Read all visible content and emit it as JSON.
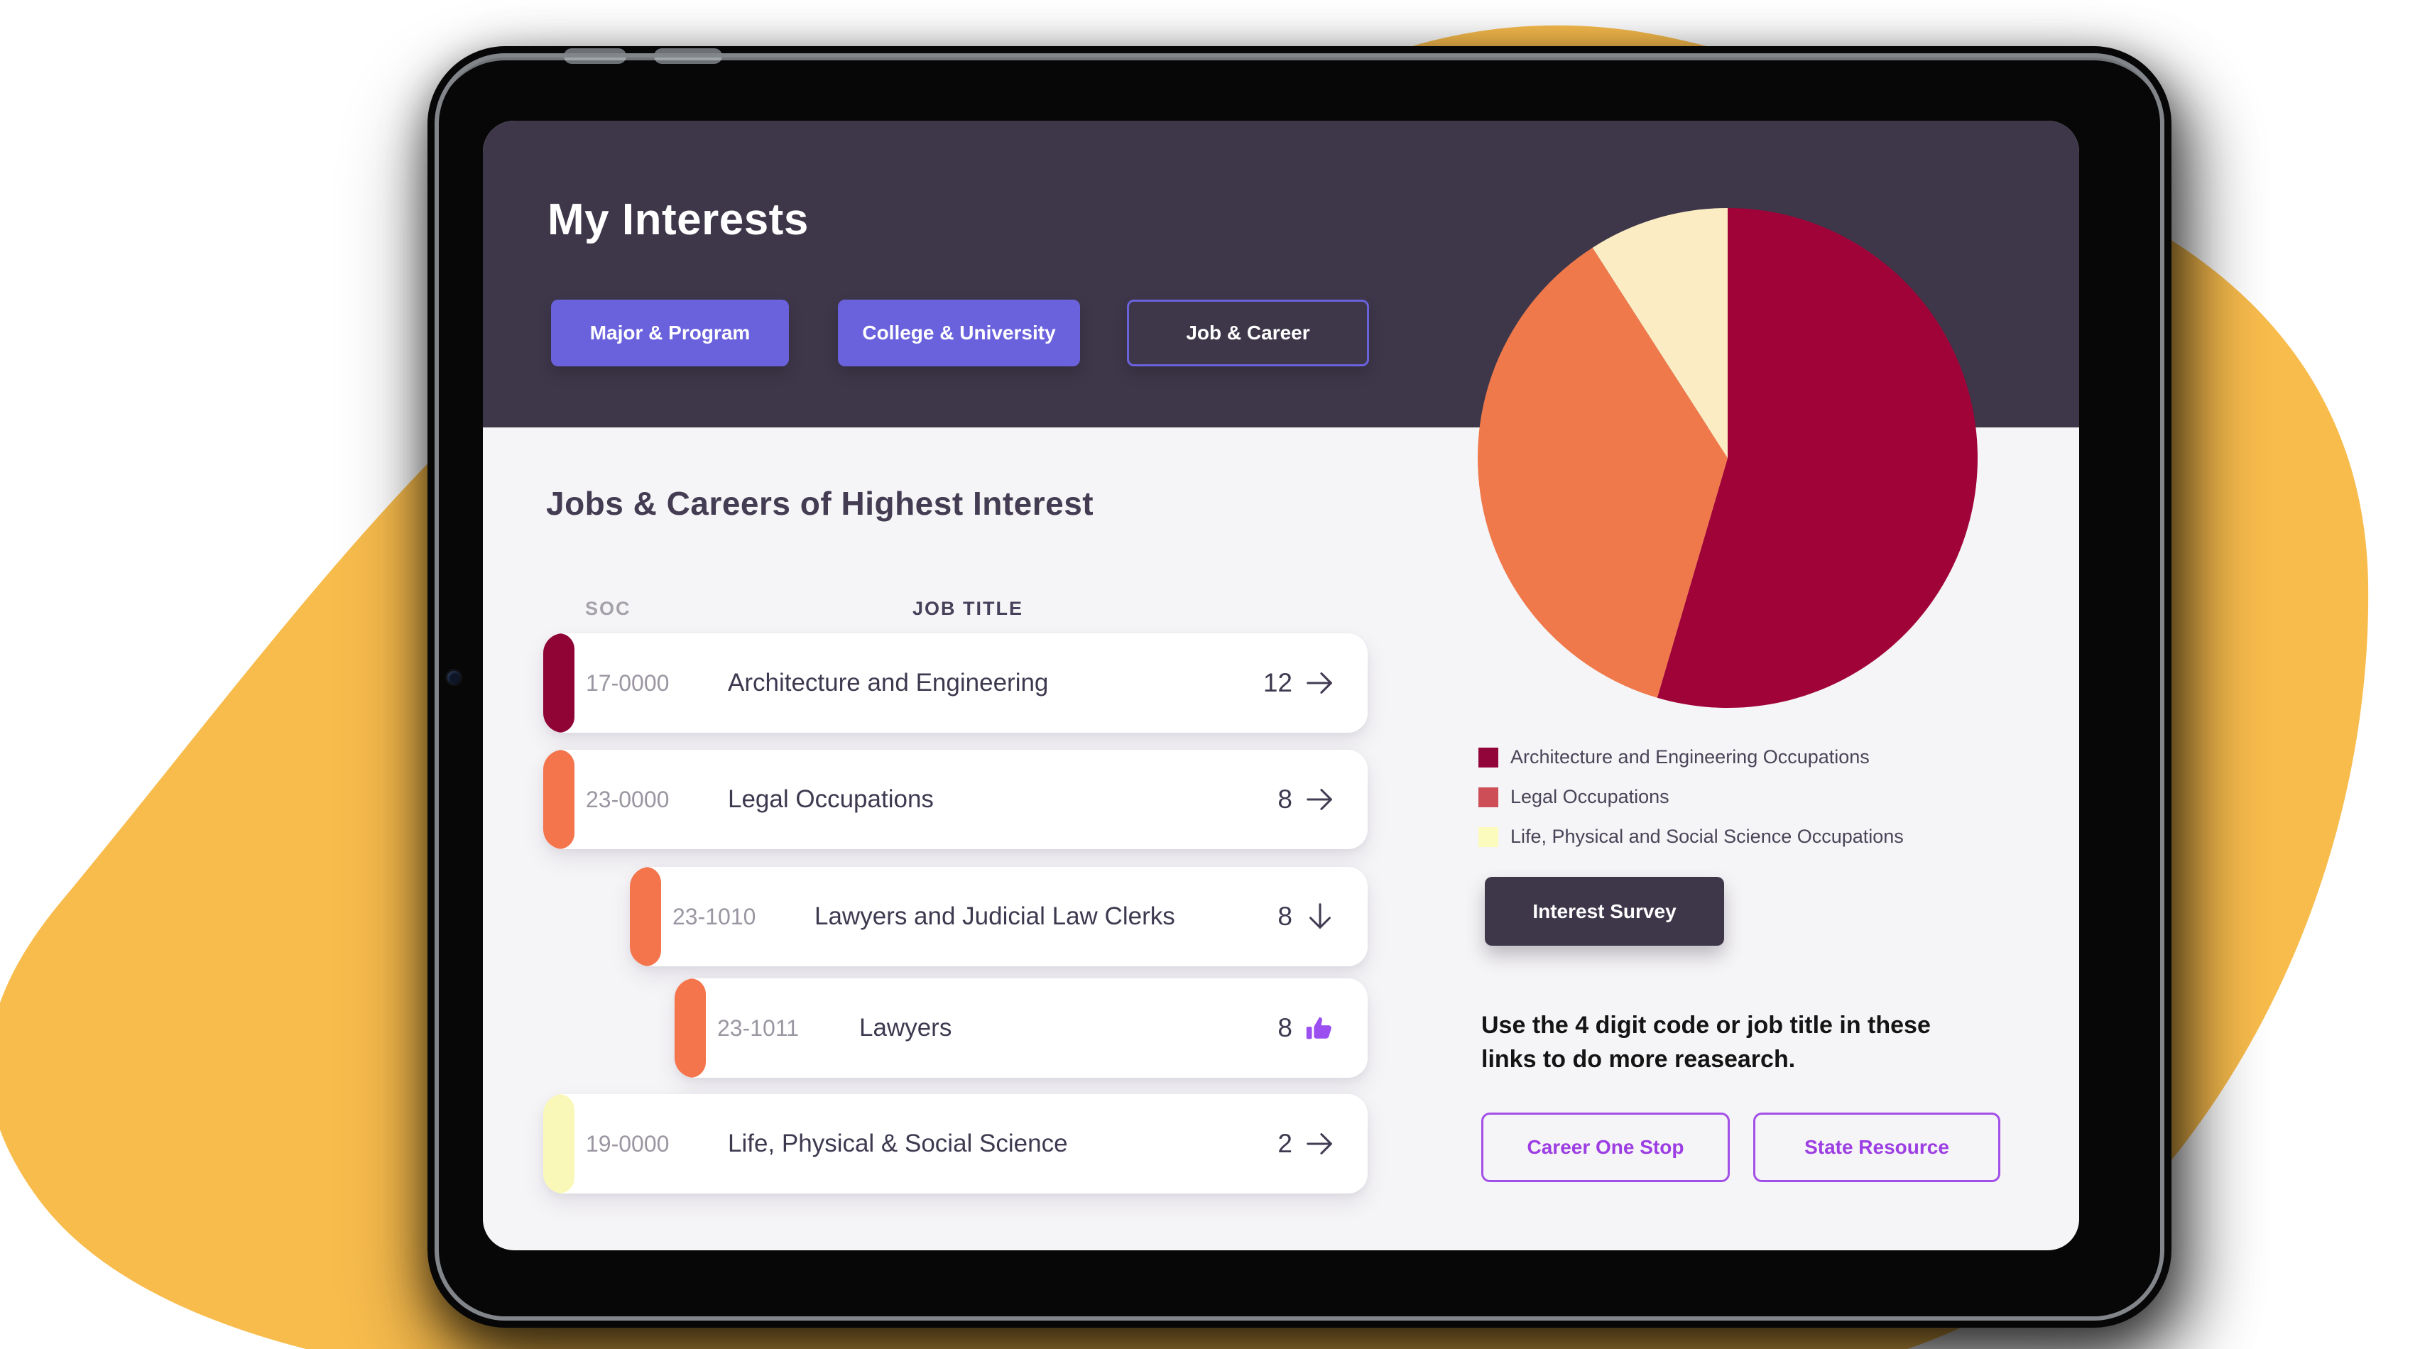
{
  "page": {
    "title": "My Interests",
    "tabs": [
      {
        "label": "Major & Program",
        "style": "filled"
      },
      {
        "label": "College & University",
        "style": "filled"
      },
      {
        "label": "Job & Career",
        "style": "outlined"
      }
    ]
  },
  "jobs_section": {
    "heading": "Jobs & Careers of Highest Interest",
    "columns": {
      "soc": "SOC",
      "job_title": "JOB TITLE"
    },
    "rows": [
      {
        "soc": "17-0000",
        "title": "Architecture and Engineering",
        "count": "12",
        "icon": "arrow-right",
        "accent": "#8F0434",
        "indent": 0
      },
      {
        "soc": "23-0000",
        "title": "Legal Occupations",
        "count": "8",
        "icon": "arrow-right",
        "accent": "#F4744C",
        "indent": 0
      },
      {
        "soc": "23-1010",
        "title": "Lawyers and Judicial Law Clerks",
        "count": "8",
        "icon": "arrow-down",
        "accent": "#F4744C",
        "indent": 1
      },
      {
        "soc": "23-1011",
        "title": "Lawyers",
        "count": "8",
        "icon": "thumbs-up",
        "accent": "#F4744C",
        "indent": 2
      },
      {
        "soc": "19-0000",
        "title": "Life, Physical & Social Science",
        "count": "2",
        "icon": "arrow-right",
        "accent": "#FAF8B8",
        "indent": 0
      }
    ]
  },
  "chart_data": {
    "type": "pie",
    "labels": [
      "Architecture and Engineering Occupations",
      "Legal Occupations",
      "Life, Physical and Social Science Occupations"
    ],
    "values": [
      12,
      8,
      2
    ],
    "slice_colors": [
      "#A00338",
      "#F0794B",
      "#FBECC4"
    ],
    "legend_colors": [
      "#92053A",
      "#CD4E57",
      "#FBFBBE"
    ],
    "start_angle_deg": 0,
    "direction": "clockwise",
    "legend_position": "below-left",
    "title": ""
  },
  "right_panel": {
    "survey_button_label": "Interest Survey",
    "research_text_lines": [
      "Use the 4 digit code or job title in these",
      "links to do more reasearch."
    ],
    "link_buttons": [
      "Career One Stop",
      "State Resource"
    ]
  },
  "colors": {
    "header_bg": "#3E374A",
    "screen_bg": "#F5F4F6",
    "tab_purple": "#6A62DD",
    "link_purple": "#A24FE8",
    "thumb_purple": "#9C4FF0",
    "blob_yellow": "#F8BC4D",
    "title_text": "#3F3950",
    "soc_text": "#9B96A1"
  }
}
